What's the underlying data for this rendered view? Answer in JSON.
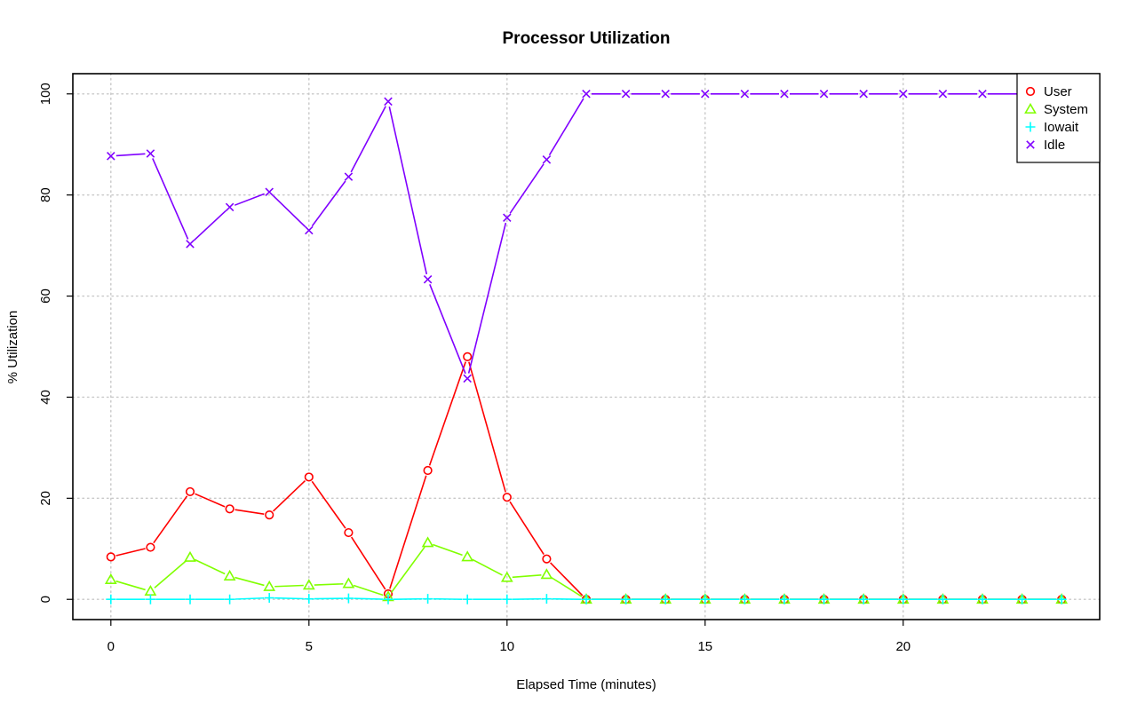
{
  "chart_data": {
    "type": "line",
    "title": "Processor Utilization",
    "xlabel": "Elapsed Time (minutes)",
    "ylabel": "% Utilization",
    "x": [
      0,
      1,
      2,
      3,
      4,
      5,
      6,
      7,
      8,
      9,
      10,
      11,
      12,
      13,
      14,
      15,
      16,
      17,
      18,
      19,
      20,
      21,
      22,
      23,
      24
    ],
    "xlim": [
      -0.96,
      24.96
    ],
    "ylim": [
      -4,
      104
    ],
    "x_ticks": [
      0,
      5,
      10,
      15,
      20
    ],
    "y_ticks": [
      0,
      20,
      40,
      60,
      80,
      100
    ],
    "grid": true,
    "legend_position": "top-right",
    "series": [
      {
        "name": "User",
        "color": "#ff0000",
        "marker": "circle",
        "values": [
          8.4,
          10.3,
          21.3,
          17.9,
          16.7,
          24.2,
          13.2,
          1.1,
          25.5,
          48.0,
          20.2,
          8.0,
          0,
          0,
          0,
          0,
          0,
          0,
          0,
          0,
          0,
          0,
          0,
          0,
          0
        ]
      },
      {
        "name": "System",
        "color": "#80ff00",
        "marker": "triangle",
        "values": [
          3.9,
          1.6,
          8.3,
          4.6,
          2.5,
          2.8,
          3.1,
          0.5,
          11.2,
          8.4,
          4.3,
          4.9,
          0,
          0,
          0,
          0,
          0,
          0,
          0,
          0,
          0,
          0,
          0,
          0,
          0
        ]
      },
      {
        "name": "Iowait",
        "color": "#00ffff",
        "marker": "plus",
        "values": [
          0,
          0,
          0,
          0,
          0.3,
          0.1,
          0.2,
          0,
          0.1,
          0,
          0,
          0.1,
          0,
          0,
          0,
          0,
          0,
          0,
          0,
          0,
          0,
          0,
          0,
          0,
          0
        ]
      },
      {
        "name": "Idle",
        "color": "#8000ff",
        "marker": "cross",
        "values": [
          87.7,
          88.2,
          70.3,
          77.6,
          80.6,
          73.0,
          83.6,
          98.5,
          63.3,
          43.7,
          75.5,
          87.0,
          100,
          100,
          100,
          100,
          100,
          100,
          100,
          100,
          100,
          100,
          100,
          100,
          100
        ]
      }
    ]
  }
}
